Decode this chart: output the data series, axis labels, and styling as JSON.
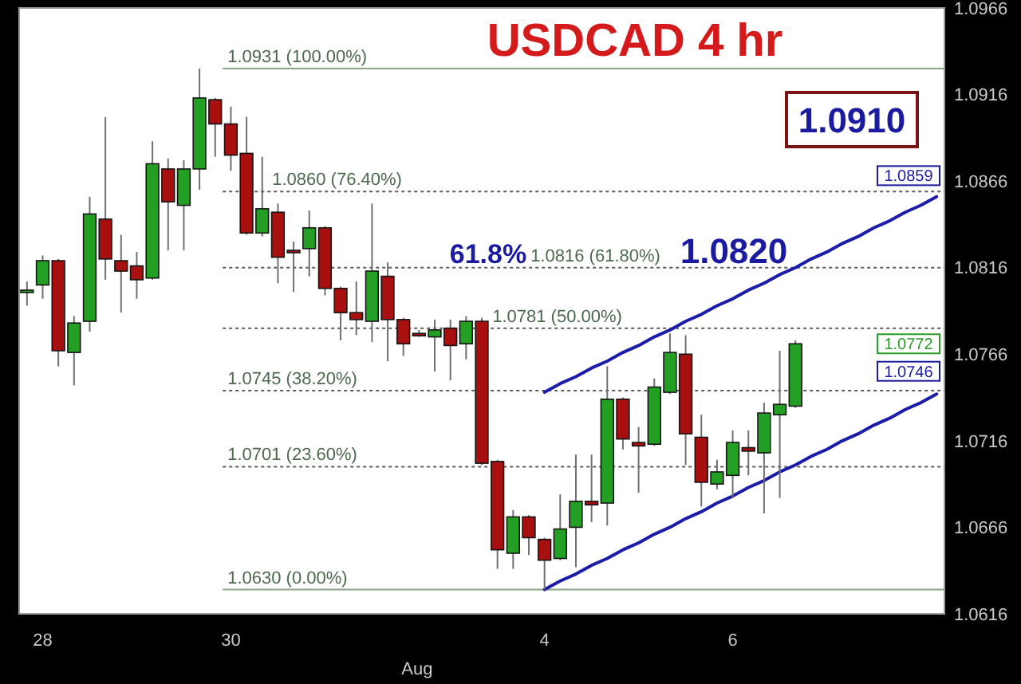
{
  "chart_data": {
    "type": "candlestick",
    "title": "USDCAD 4 hr",
    "xlabel": "Aug",
    "categories": [
      null,
      "28",
      null,
      null,
      null,
      null,
      null,
      null,
      null,
      null,
      null,
      null,
      null,
      "30",
      null,
      null,
      null,
      null,
      null,
      null,
      null,
      null,
      null,
      null,
      null,
      null,
      null,
      null,
      null,
      null,
      null,
      null,
      null,
      "4",
      null,
      null,
      null,
      null,
      null,
      null,
      null,
      null,
      null,
      null,
      null,
      "6",
      null,
      null,
      null,
      null,
      null,
      null,
      null,
      null,
      null,
      null,
      null,
      null,
      null
    ],
    "ohlc": [
      [
        1.0802,
        1.0808,
        1.0794,
        1.0803
      ],
      [
        1.0806,
        1.0823,
        1.0798,
        1.082
      ],
      [
        1.082,
        1.0821,
        1.0759,
        1.0768
      ],
      [
        1.0767,
        1.0788,
        1.0748,
        1.0784
      ],
      [
        1.0785,
        1.0857,
        1.0779,
        1.0847
      ],
      [
        1.0844,
        1.0903,
        1.0809,
        1.0821
      ],
      [
        1.082,
        1.0835,
        1.079,
        1.0814
      ],
      [
        1.0817,
        1.0825,
        1.0798,
        1.0809
      ],
      [
        1.081,
        1.0889,
        1.0809,
        1.0876
      ],
      [
        1.0873,
        1.0879,
        1.0826,
        1.0854
      ],
      [
        1.0852,
        1.0878,
        1.0826,
        1.0873
      ],
      [
        1.0873,
        1.0931,
        1.0861,
        1.0914
      ],
      [
        1.0913,
        1.0914,
        1.088,
        1.0899
      ],
      [
        1.0899,
        1.0909,
        1.0872,
        1.0881
      ],
      [
        1.0882,
        1.0903,
        1.0835,
        1.0836
      ],
      [
        1.0836,
        1.088,
        1.0834,
        1.085
      ],
      [
        1.0848,
        1.0853,
        1.0807,
        1.0822
      ],
      [
        1.0826,
        1.0831,
        1.0802,
        1.0825
      ],
      [
        1.0827,
        1.0849,
        1.0811,
        1.0839
      ],
      [
        1.0839,
        1.084,
        1.08,
        1.0804
      ],
      [
        1.0804,
        1.0805,
        1.0774,
        1.079
      ],
      [
        1.079,
        1.0808,
        1.0777,
        1.0786
      ],
      [
        1.0785,
        1.0853,
        1.0773,
        1.0814
      ],
      [
        1.0811,
        1.0819,
        1.0762,
        1.0786
      ],
      [
        1.0786,
        1.0787,
        1.0765,
        1.0772
      ],
      [
        1.0778,
        1.078,
        1.0776,
        1.0777
      ],
      [
        1.0776,
        1.0786,
        1.0756,
        1.078
      ],
      [
        1.0781,
        1.0786,
        1.0751,
        1.0771
      ],
      [
        1.0772,
        1.0788,
        1.0763,
        1.0785
      ],
      [
        1.0785,
        1.0787,
        1.0702,
        1.0703
      ],
      [
        1.0704,
        1.0705,
        1.0642,
        1.0653
      ],
      [
        1.0651,
        1.0676,
        1.0642,
        1.0672
      ],
      [
        1.0672,
        1.0673,
        1.065,
        1.066
      ],
      [
        1.0659,
        1.066,
        1.063,
        1.0647
      ],
      [
        1.0648,
        1.0685,
        1.0647,
        1.0665
      ],
      [
        1.0666,
        1.0708,
        1.0643,
        1.0681
      ],
      [
        1.0681,
        1.0708,
        1.0669,
        1.0679
      ],
      [
        1.068,
        1.0759,
        1.0667,
        1.074
      ],
      [
        1.074,
        1.0741,
        1.0711,
        1.0717
      ],
      [
        1.0715,
        1.0724,
        1.0686,
        1.0713
      ],
      [
        1.0714,
        1.0752,
        1.0713,
        1.0747
      ],
      [
        1.0744,
        1.0778,
        1.0743,
        1.0767
      ],
      [
        1.0766,
        1.0777,
        1.0702,
        1.072
      ],
      [
        1.0718,
        1.0731,
        1.0678,
        1.0692
      ],
      [
        1.0691,
        1.0705,
        1.0688,
        1.0698
      ],
      [
        1.0696,
        1.0722,
        1.0683,
        1.0715
      ],
      [
        1.0712,
        1.0722,
        1.0696,
        1.071
      ],
      [
        1.0709,
        1.0738,
        1.0674,
        1.0732
      ],
      [
        1.0731,
        1.0768,
        1.0683,
        1.0737
      ],
      [
        1.0736,
        1.0774,
        1.0735,
        1.0772
      ],
      null,
      null,
      null,
      null,
      null,
      null,
      null,
      null,
      null
    ],
    "colors": [
      "#23a023",
      "#23a023",
      "#a80f0f",
      "#23a023",
      "#23a023",
      "#a80f0f",
      "#a80f0f",
      "#a80f0f",
      "#23a023",
      "#a80f0f",
      "#23a023",
      "#23a023",
      "#a80f0f",
      "#a80f0f",
      "#a80f0f",
      "#23a023",
      "#a80f0f",
      "#a80f0f",
      "#23a023",
      "#a80f0f",
      "#a80f0f",
      "#a80f0f",
      "#23a023",
      "#a80f0f",
      "#a80f0f",
      "#a80f0f",
      "#23a023",
      "#a80f0f",
      "#23a023",
      "#a80f0f",
      "#a80f0f",
      "#23a023",
      "#a80f0f",
      "#a80f0f",
      "#23a023",
      "#23a023",
      "#a80f0f",
      "#23a023",
      "#a80f0f",
      "#a80f0f",
      "#23a023",
      "#23a023",
      "#a80f0f",
      "#a80f0f",
      "#23a023",
      "#23a023",
      "#a80f0f",
      "#23a023",
      "#23a023",
      "#23a023",
      null,
      null,
      null,
      null,
      null,
      null,
      null,
      null,
      null
    ],
    "series": [
      {
        "type": "line",
        "color": "#1c1caa",
        "values": [
          null,
          null,
          null,
          null,
          null,
          null,
          null,
          null,
          null,
          null,
          null,
          null,
          null,
          null,
          null,
          null,
          null,
          null,
          null,
          null,
          null,
          null,
          null,
          null,
          null,
          null,
          null,
          null,
          null,
          null,
          null,
          null,
          null,
          1.0744,
          1.0749,
          1.0753,
          1.0758,
          1.0762,
          1.0767,
          1.0771,
          1.0776,
          1.078,
          1.0785,
          1.0789,
          1.0794,
          1.0798,
          1.0803,
          1.0807,
          1.0812,
          1.0816,
          1.0821,
          1.0825,
          1.083,
          1.0834,
          1.0839,
          1.0843,
          1.0848,
          1.0852,
          1.0857
        ]
      },
      {
        "type": "line",
        "color": "#1c1caa",
        "values": [
          null,
          null,
          null,
          null,
          null,
          null,
          null,
          null,
          null,
          null,
          null,
          null,
          null,
          null,
          null,
          null,
          null,
          null,
          null,
          null,
          null,
          null,
          null,
          null,
          null,
          null,
          null,
          null,
          null,
          null,
          null,
          null,
          null,
          1.063,
          1.0635,
          1.0639,
          1.0644,
          1.0648,
          1.0653,
          1.0657,
          1.0662,
          1.0666,
          1.0671,
          1.0675,
          1.068,
          1.0684,
          1.0689,
          1.0693,
          1.0698,
          1.0702,
          1.0707,
          1.0711,
          1.0716,
          1.072,
          1.0725,
          1.0729,
          1.0734,
          1.0738,
          1.0743
        ]
      }
    ],
    "ylim": [
      1.0616,
      1.0966
    ],
    "yticks": [
      1.0616,
      1.0666,
      1.0716,
      1.0766,
      1.0816,
      1.0866,
      1.0916,
      1.0966
    ],
    "ref_lines": [
      {
        "axis": "y",
        "value": 1.0931,
        "label": "1.0931 (100.00%)",
        "color": "#8aa58a",
        "line_style": "solid"
      },
      {
        "axis": "y",
        "value": 1.086,
        "label": "1.0860 (76.40%)",
        "color": "#5c5c5c",
        "line_style": "dotted"
      },
      {
        "axis": "y",
        "value": 1.0816,
        "label": "1.0816 (61.80%)",
        "color": "#5c5c5c",
        "line_style": "dotted"
      },
      {
        "axis": "y",
        "value": 1.0781,
        "label": "1.0781 (50.00%)",
        "color": "#5c5c5c",
        "line_style": "dotted"
      },
      {
        "axis": "y",
        "value": 1.0745,
        "label": "1.0745 (38.20%)",
        "color": "#5c5c5c",
        "line_style": "dotted"
      },
      {
        "axis": "y",
        "value": 1.0701,
        "label": "1.0701 (23.60%)",
        "color": "#5c5c5c",
        "line_style": "dotted"
      },
      {
        "axis": "y",
        "value": 1.063,
        "label": "1.0630 (0.00%)",
        "color": "#8aa58a",
        "line_style": "solid"
      }
    ],
    "annotations": [
      "61.8%",
      "1.0820",
      "1.0910",
      {
        "text": "1.0859",
        "y": 1.0859
      },
      {
        "text": "1.0746",
        "y": 1.0746
      },
      {
        "text": "1.0772",
        "y": 1.0772
      }
    ]
  }
}
